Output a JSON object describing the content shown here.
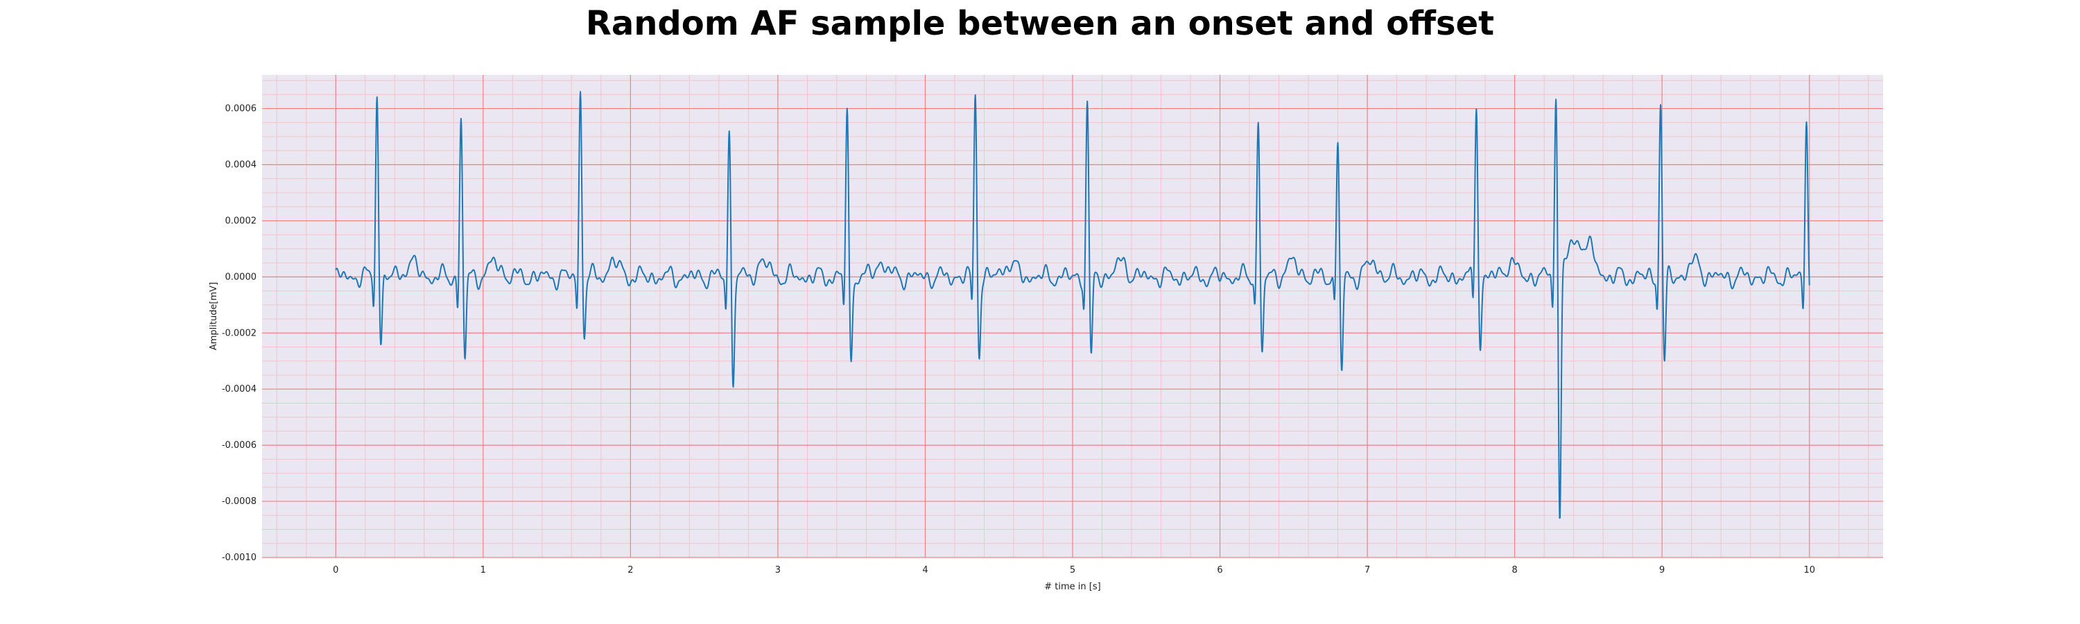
{
  "chart_data": {
    "type": "line",
    "title": "Random AF sample between an onset and offset",
    "xlabel": "# time in [s]",
    "ylabel": "Amplitude[mV]",
    "xlim": [
      -0.5,
      10.5
    ],
    "ylim": [
      -0.001,
      0.00072
    ],
    "xticks": [
      "0",
      "1",
      "2",
      "3",
      "4",
      "5",
      "6",
      "7",
      "8",
      "9",
      "10"
    ],
    "yticks": [
      "0.0006",
      "0.0004",
      "0.0002",
      "0.0000",
      "-0.0002",
      "-0.0004",
      "-0.0006",
      "-0.0008",
      "-0.0010"
    ],
    "grid": true,
    "minor_grid": true,
    "colors": {
      "line": "#1f77b4",
      "plot_background": "#eae7f3",
      "major_grid": "#f08080",
      "minor_grid": "#f2c4c8"
    },
    "series": [
      {
        "beats": [
          {
            "t": 0.28,
            "peak": 0.00066,
            "trough": -0.00024
          },
          {
            "t": 0.85,
            "peak": 0.00056,
            "trough": -0.0003
          },
          {
            "t": 1.66,
            "peak": 0.00066,
            "trough": -0.00021
          },
          {
            "t": 2.67,
            "peak": 0.00052,
            "trough": -0.00038
          },
          {
            "t": 3.47,
            "peak": 0.00059,
            "trough": -0.00031
          },
          {
            "t": 4.34,
            "peak": 0.00066,
            "trough": -0.00028
          },
          {
            "t": 5.1,
            "peak": 0.00063,
            "trough": -0.00031
          },
          {
            "t": 6.26,
            "peak": 0.00057,
            "trough": -0.00029
          },
          {
            "t": 6.8,
            "peak": 0.0005,
            "trough": -0.00036
          },
          {
            "t": 7.74,
            "peak": 0.00064,
            "trough": -0.00026
          },
          {
            "t": 8.28,
            "peak": 0.00066,
            "trough": -0.00092
          },
          {
            "t": 8.99,
            "peak": 0.00063,
            "trough": -0.00032
          },
          {
            "t": 9.98,
            "peak": 0.00056,
            "trough": -6e-05
          }
        ],
        "t_start": 0.0,
        "t_end": 10.0
      }
    ]
  }
}
